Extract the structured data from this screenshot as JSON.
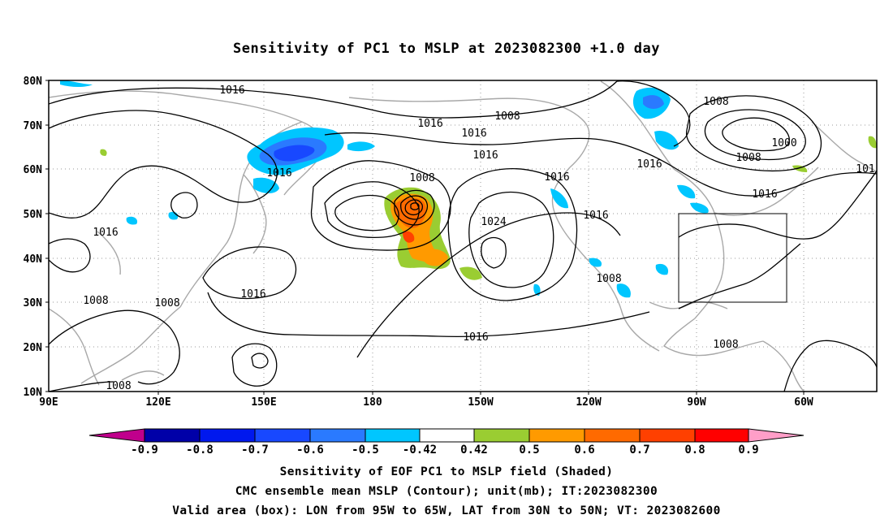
{
  "title": "Sensitivity of PC1 to MSLP at 2023082300 +1.0 day",
  "lat_labels": [
    "80N",
    "70N",
    "60N",
    "50N",
    "40N",
    "30N",
    "20N",
    "10N"
  ],
  "lon_labels": [
    "90E",
    "120E",
    "150E",
    "180",
    "150W",
    "120W",
    "90W",
    "60W"
  ],
  "colorbar": {
    "colors": [
      "#c0008c",
      "#0000a8",
      "#0018ee",
      "#1848ff",
      "#2a7aff",
      "#00c6ff",
      "#ffffff",
      "#9acd32",
      "#ff9a00",
      "#ff6a00",
      "#ff4000",
      "#ff0000",
      "#ff0000",
      "#ff9ec8"
    ],
    "labels": [
      "-0.9",
      "-0.8",
      "-0.7",
      "-0.6",
      "-0.5",
      "-0.42",
      "0.42",
      "0.5",
      "0.6",
      "0.7",
      "0.8",
      "0.9"
    ]
  },
  "contour_labels": {
    "c1016_a": "1016",
    "c1008_a": "1008",
    "c1016_b": "1016",
    "c1016_c": "1016",
    "c1016_d": "1016",
    "c1008_b": "1008",
    "c1024": "1024",
    "c1016_e": "1016",
    "c1016_f": "1016",
    "c1016_g": "1016",
    "c1008_c": "1008",
    "c1000": "1000",
    "c1008_d": "1008",
    "c1016_h": "1016",
    "c101": "101",
    "c1016_i": "1016",
    "c1008_e": "1008",
    "c1016_j": "1016",
    "c1016_k": "1016",
    "c1008_f": "1008",
    "c1008_g": "1008",
    "c1008_h": "1008",
    "c1016_l": "1016",
    "c1008_i": "1008"
  },
  "box": {
    "lon_range": "95W to 65W",
    "lat_range": "30N to 50N"
  },
  "footer": {
    "line1": "Sensitivity of EOF PC1 to MSLP field (Shaded)",
    "line2": "CMC ensemble mean MSLP (Contour); unit(mb); IT:2023082300",
    "line3": "Valid area (box): LON from 95W to 65W, LAT from 30N to 50N; VT: 2023082600"
  }
}
